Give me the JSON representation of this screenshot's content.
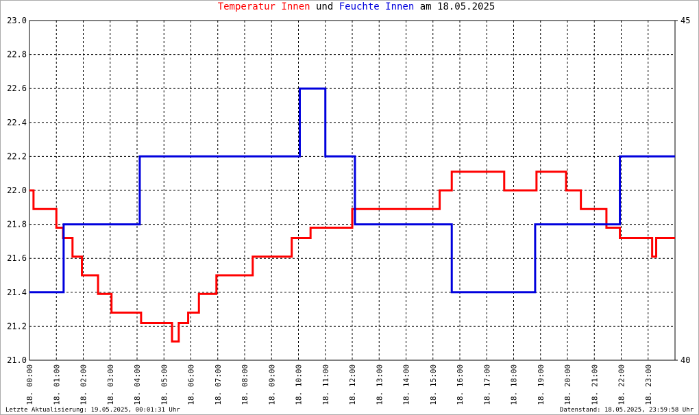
{
  "chart_data": {
    "type": "line",
    "title": [
      "Temperatur Innen",
      "und",
      "Feuchte Innen",
      "am 18.05.2025"
    ],
    "footer_left": "Letzte Aktualisierung: 19.05.2025, 00:01:31 Uhr",
    "footer_right": "Datenstand: 18.05.2025, 23:59:58 Uhr",
    "xlim": [
      0,
      24
    ],
    "xticks": [
      {
        "value": 0,
        "label": "18. 00:00"
      },
      {
        "value": 1,
        "label": "18. 01:00"
      },
      {
        "value": 2,
        "label": "18. 02:00"
      },
      {
        "value": 3,
        "label": "18. 03:00"
      },
      {
        "value": 4,
        "label": "18. 04:00"
      },
      {
        "value": 5,
        "label": "18. 05:00"
      },
      {
        "value": 6,
        "label": "18. 06:00"
      },
      {
        "value": 7,
        "label": "18. 07:00"
      },
      {
        "value": 8,
        "label": "18. 08:00"
      },
      {
        "value": 9,
        "label": "18. 09:00"
      },
      {
        "value": 10,
        "label": "18. 10:00"
      },
      {
        "value": 11,
        "label": "18. 11:00"
      },
      {
        "value": 12,
        "label": "18. 12:00"
      },
      {
        "value": 13,
        "label": "18. 13:00"
      },
      {
        "value": 14,
        "label": "18. 14:00"
      },
      {
        "value": 15,
        "label": "18. 15:00"
      },
      {
        "value": 16,
        "label": "18. 16:00"
      },
      {
        "value": 17,
        "label": "18. 17:00"
      },
      {
        "value": 18,
        "label": "18. 18:00"
      },
      {
        "value": 19,
        "label": "18. 19:00"
      },
      {
        "value": 20,
        "label": "18. 20:00"
      },
      {
        "value": 21,
        "label": "18. 21:00"
      },
      {
        "value": 22,
        "label": "18. 22:00"
      },
      {
        "value": 23,
        "label": "18. 23:00"
      }
    ],
    "ylim": [
      21.0,
      23.0
    ],
    "yticks": [
      {
        "value": 21.0,
        "label": "21.0"
      },
      21.2,
      21.4,
      21.6,
      21.8,
      {
        "value": 22.0,
        "label": "22.0"
      },
      22.2,
      22.4,
      22.6,
      22.8,
      {
        "value": 23.0,
        "label": "23.0"
      }
    ],
    "y2lim": [
      40,
      45
    ],
    "y2ticks": [
      40,
      45
    ],
    "grid": true,
    "series": [
      {
        "name": "Temperatur Innen",
        "color": "#ff0000",
        "x": [
          0,
          0.15,
          0.15,
          1.0,
          1.0,
          1.25,
          1.25,
          1.6,
          1.6,
          1.95,
          1.95,
          2.55,
          2.55,
          3.05,
          3.05,
          4.15,
          4.15,
          5.3,
          5.3,
          5.55,
          5.55,
          5.9,
          5.9,
          6.3,
          6.3,
          6.95,
          6.95,
          8.3,
          8.3,
          9.75,
          9.75,
          10.45,
          10.45,
          12.0,
          12.0,
          15.25,
          15.25,
          15.7,
          15.7,
          17.65,
          17.65,
          18.85,
          18.85,
          19.95,
          19.95,
          20.5,
          20.5,
          21.45,
          21.45,
          21.95,
          21.95,
          23.15,
          23.15,
          23.3,
          23.3,
          24
        ],
        "values": [
          22.0,
          22.0,
          21.89,
          21.89,
          21.78,
          21.78,
          21.72,
          21.72,
          21.61,
          21.61,
          21.5,
          21.5,
          21.39,
          21.39,
          21.28,
          21.28,
          21.22,
          21.22,
          21.11,
          21.11,
          21.22,
          21.22,
          21.28,
          21.28,
          21.39,
          21.39,
          21.5,
          21.5,
          21.61,
          21.61,
          21.72,
          21.72,
          21.78,
          21.78,
          21.89,
          21.89,
          22.0,
          22.0,
          22.11,
          22.11,
          22.0,
          22.0,
          22.11,
          22.11,
          22.0,
          22.0,
          21.89,
          21.89,
          21.78,
          21.78,
          21.72,
          21.72,
          21.61,
          21.61,
          21.72,
          21.72
        ]
      },
      {
        "name": "Feuchte Innen",
        "color": "#0000dd",
        "axis": "y2",
        "x": [
          0,
          1.27,
          1.27,
          4.1,
          4.1,
          10.05,
          10.05,
          11.0,
          11.0,
          12.1,
          12.1,
          15.7,
          15.7,
          18.8,
          18.8,
          21.95,
          21.95,
          24
        ],
        "values": [
          41,
          41,
          42,
          42,
          43,
          43,
          44,
          44,
          43,
          43,
          42,
          42,
          41,
          41,
          42,
          42,
          43,
          43
        ]
      }
    ]
  }
}
